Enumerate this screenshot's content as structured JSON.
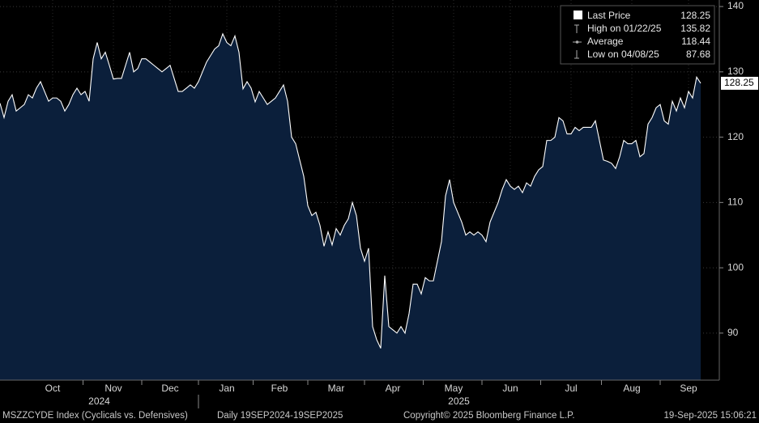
{
  "chart_data": {
    "type": "area",
    "categories": [
      null,
      null,
      null,
      null,
      null,
      null,
      null,
      null,
      null,
      null,
      null,
      null,
      null,
      "Oct",
      null,
      null,
      null,
      null,
      null,
      null,
      null,
      null,
      null,
      null,
      null,
      null,
      null,
      null,
      "Nov",
      null,
      null,
      null,
      null,
      null,
      null,
      null,
      null,
      null,
      null,
      null,
      null,
      null,
      "Dec",
      null,
      null,
      null,
      null,
      null,
      null,
      null,
      null,
      null,
      null,
      null,
      null,
      null,
      "Jan",
      null,
      null,
      null,
      null,
      null,
      null,
      null,
      null,
      null,
      null,
      null,
      null,
      "Feb",
      null,
      null,
      null,
      null,
      null,
      null,
      null,
      null,
      null,
      null,
      null,
      null,
      null,
      "Mar",
      null,
      null,
      null,
      null,
      null,
      null,
      null,
      null,
      null,
      null,
      null,
      null,
      null,
      "Apr",
      null,
      null,
      null,
      null,
      null,
      null,
      null,
      null,
      null,
      null,
      null,
      null,
      null,
      null,
      "May",
      null,
      null,
      null,
      null,
      null,
      null,
      null,
      null,
      null,
      null,
      null,
      null,
      null,
      "Jun",
      null,
      null,
      null,
      null,
      null,
      null,
      null,
      null,
      null,
      null,
      null,
      null,
      null,
      null,
      "Jul",
      null,
      null,
      null,
      null,
      null,
      null,
      null,
      null,
      null,
      null,
      null,
      null,
      null,
      null,
      "Aug",
      null,
      null,
      null,
      null,
      null,
      null,
      null,
      null,
      null,
      null,
      null,
      null,
      null,
      "Sep",
      null,
      null,
      null
    ],
    "year_labels": [
      "2024",
      "2025"
    ],
    "series": [
      {
        "color": "#ffffff",
        "fill": "#0b1f3b",
        "values": [
          125.2,
          123,
          125.5,
          126.5,
          124,
          124.5,
          125,
          126.5,
          126,
          127.5,
          128.5,
          127,
          125.5,
          126,
          126,
          125.5,
          124,
          125,
          126.5,
          127.5,
          126.5,
          127,
          125.5,
          132,
          134.5,
          132,
          133,
          131,
          128.9,
          129,
          129,
          131,
          133,
          130,
          130.5,
          132,
          132,
          131.5,
          131,
          130.5,
          130,
          130.5,
          131,
          129,
          127,
          127,
          127.5,
          128,
          127.5,
          128.5,
          130,
          131.5,
          132.5,
          133.5,
          134,
          135.82,
          134.5,
          134,
          135.5,
          133,
          127.4,
          128.5,
          127.5,
          125.4,
          127,
          126,
          125,
          125.5,
          126,
          127,
          128,
          125.5,
          120,
          119,
          116.5,
          114,
          109.5,
          108,
          108.5,
          106.5,
          103.3,
          105.5,
          103.5,
          106,
          105,
          106.5,
          107.5,
          110,
          108,
          103,
          101,
          103,
          91,
          89,
          87.68,
          98.8,
          91,
          90.5,
          90,
          91,
          90,
          93,
          97.5,
          97.5,
          96,
          98.5,
          98,
          98,
          101,
          104,
          111,
          113.5,
          110,
          108.5,
          107,
          105,
          105.5,
          105,
          105.5,
          105,
          104,
          107,
          108.5,
          110,
          112,
          113.5,
          112.5,
          112,
          112.5,
          111.5,
          113,
          112.5,
          114,
          115,
          115.5,
          119.5,
          119.5,
          120,
          123,
          122.5,
          120.5,
          120.5,
          121.5,
          121,
          121.5,
          121.5,
          121.5,
          122.5,
          119.5,
          116.5,
          116.3,
          116,
          115.2,
          117,
          119.5,
          119,
          119,
          119.5,
          117,
          117.5,
          122,
          123,
          124.5,
          125,
          122.5,
          122,
          125.5,
          124,
          126,
          124.5,
          127,
          126,
          129.2,
          128.25
        ]
      }
    ],
    "ylim": [
      82.8,
      141
    ],
    "yticks": [
      90,
      100,
      110,
      120,
      130,
      140
    ],
    "grid": true,
    "legend_position": "top-right",
    "legend": [
      {
        "label": "Last Price",
        "value": 128.25
      },
      {
        "label": "High on 01/22/25",
        "value": 135.82
      },
      {
        "label": "Average",
        "value": 118.44
      },
      {
        "label": "Low on 04/08/25",
        "value": 87.68
      }
    ],
    "footer": {
      "ticker": "MSZZCYDE Index (Cyclicals vs. Defensives)",
      "period": "Daily 19SEP2024-19SEP2025",
      "copyright": "Copyright© 2025 Bloomberg Finance L.P.",
      "timestamp": "19-Sep-2025 15:06:21"
    }
  }
}
